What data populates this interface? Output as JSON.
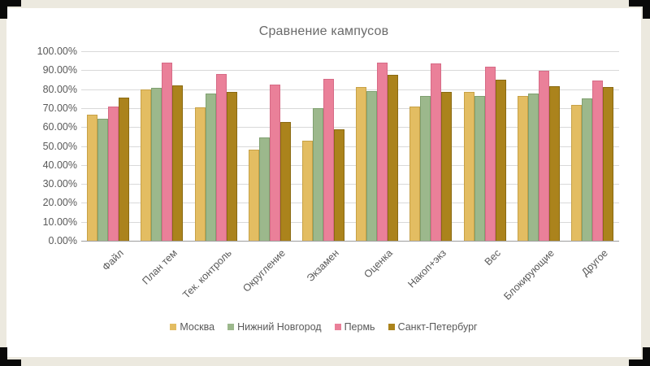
{
  "slide": {
    "background_color": "#ece9df",
    "panel_color": "#ffffff",
    "corner_color": "#0a0a0a"
  },
  "chart_data": {
    "type": "bar",
    "title": "Сравнение кампусов",
    "categories": [
      "Файл",
      "План тем",
      "Тек. контроль",
      "Округление",
      "Экзамен",
      "Оценка",
      "Накоп+экз",
      "Вес",
      "Блокирующие",
      "Другое"
    ],
    "series": [
      {
        "name": "Москва",
        "color": "#e3bd62",
        "border": "#c7a147",
        "values": [
          66.5,
          80,
          70.5,
          48,
          53,
          81,
          71,
          78.5,
          76.5,
          71.5
        ]
      },
      {
        "name": "Нижний Новгород",
        "color": "#9cb88c",
        "border": "#7fa070",
        "values": [
          64.5,
          80.5,
          77.5,
          54.5,
          70,
          79,
          76.5,
          76.5,
          77.5,
          75
        ]
      },
      {
        "name": "Пермь",
        "color": "#ea8099",
        "border": "#d66a86",
        "values": [
          71,
          94,
          88,
          82.5,
          85.5,
          94,
          93.5,
          92,
          89.5,
          84.5
        ]
      },
      {
        "name": "Санкт-Петербург",
        "color": "#ab831c",
        "border": "#8a6a12",
        "values": [
          75.5,
          82,
          78.5,
          62.5,
          59,
          87.5,
          78.5,
          85,
          81.5,
          81
        ]
      }
    ],
    "ylim": [
      0,
      100
    ],
    "ytick_step": 10,
    "ytick_labels": [
      "0.00%",
      "10.00%",
      "20.00%",
      "30.00%",
      "40.00%",
      "50.00%",
      "60.00%",
      "70.00%",
      "80.00%",
      "90.00%",
      "100.00%"
    ],
    "grid": true,
    "legend_position": "bottom",
    "text_color": "#595959",
    "grid_color": "#d9d9d9"
  }
}
